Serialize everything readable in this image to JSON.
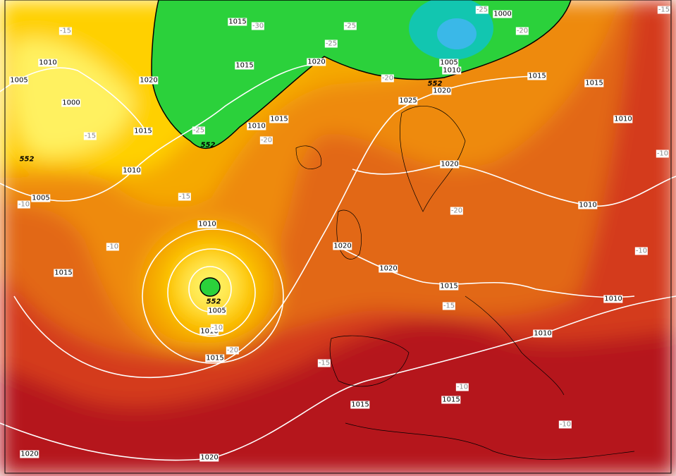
{
  "isobar_labels": [
    "1015",
    "1015",
    "1020",
    "1020",
    "1010",
    "1005",
    "1000",
    "1015",
    "1010",
    "1015",
    "1010",
    "1005",
    "1010",
    "1015",
    "1005",
    "1010",
    "1015",
    "1020",
    "1020",
    "1025",
    "1020",
    "1005",
    "1010",
    "1000",
    "1015",
    "1015",
    "1010",
    "1020",
    "1010",
    "1015",
    "1010",
    "1010",
    "1015",
    "1015",
    "1020",
    "1020"
  ],
  "temperature_labels": [
    "-15",
    "-30",
    "-25",
    "-25",
    "-25",
    "-20",
    "-20",
    "-25",
    "-20",
    "-15",
    "-10",
    "-15",
    "-10",
    "-20",
    "-15",
    "-10",
    "-20",
    "-15",
    "-10",
    "-10",
    "-10",
    "-10",
    "-15"
  ],
  "thickness_labels": [
    "552",
    "552",
    "552",
    "552"
  ]
}
